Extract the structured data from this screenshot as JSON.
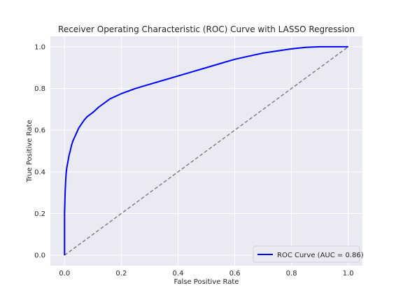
{
  "chart_data": {
    "type": "line",
    "title": "Receiver Operating Characteristic (ROC) Curve with LASSO Regression",
    "xlabel": "False Positive Rate",
    "ylabel": "True Positive Rate",
    "xlim": [
      -0.05,
      1.05
    ],
    "ylim": [
      -0.05,
      1.05
    ],
    "xticks": [
      "0.0",
      "0.2",
      "0.4",
      "0.6",
      "0.8",
      "1.0"
    ],
    "yticks": [
      "0.0",
      "0.2",
      "0.4",
      "0.6",
      "0.8",
      "1.0"
    ],
    "grid": true,
    "legend_position": "lower-right",
    "series": [
      {
        "name": "ROC Curve (AUC = 0.86)",
        "color": "#0000ff",
        "style": "solid",
        "x": [
          0.0,
          0.0,
          0.002,
          0.004,
          0.006,
          0.008,
          0.012,
          0.016,
          0.02,
          0.025,
          0.03,
          0.04,
          0.05,
          0.06,
          0.07,
          0.08,
          0.1,
          0.12,
          0.14,
          0.16,
          0.2,
          0.25,
          0.3,
          0.35,
          0.4,
          0.45,
          0.5,
          0.55,
          0.6,
          0.65,
          0.7,
          0.75,
          0.8,
          0.85,
          0.9,
          0.95,
          1.0
        ],
        "y": [
          0.0,
          0.2,
          0.3,
          0.36,
          0.4,
          0.42,
          0.45,
          0.48,
          0.5,
          0.53,
          0.55,
          0.58,
          0.61,
          0.63,
          0.65,
          0.665,
          0.685,
          0.71,
          0.73,
          0.75,
          0.775,
          0.8,
          0.82,
          0.84,
          0.86,
          0.88,
          0.9,
          0.92,
          0.94,
          0.955,
          0.97,
          0.98,
          0.99,
          0.997,
          1.0,
          1.0,
          1.0
        ]
      },
      {
        "name": "",
        "color": "#808080",
        "style": "dashed",
        "x": [
          0,
          1
        ],
        "y": [
          0,
          1
        ]
      }
    ]
  }
}
